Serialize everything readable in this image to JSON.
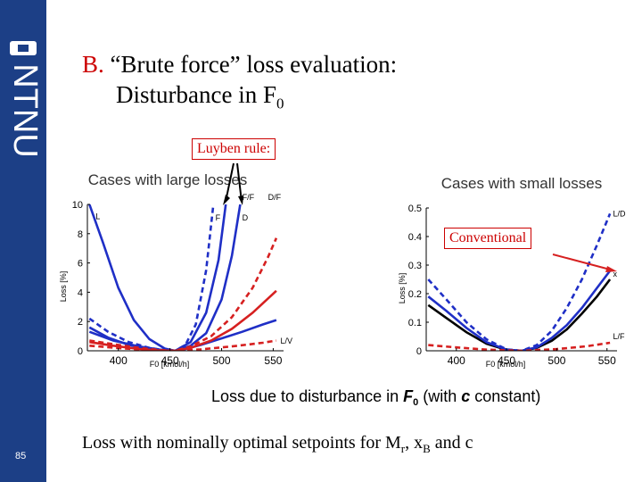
{
  "slide": {
    "prefix": "B.",
    "title_line1": "“Brute force” loss evaluation:",
    "title_line2": "Disturbance in F",
    "title_sub": "0",
    "page_number": "85",
    "footer_text": "Loss with nominally optimal setpoints for M",
    "footer_sub": "r",
    "footer_mid": ", x",
    "footer_sub2": "B",
    "footer_end": " and c",
    "luyben_label": "Luyben rule:",
    "conventional_label": "Conventional",
    "bottom_caption_pre": "Loss due to disturbance in ",
    "bottom_caption_sym": "F",
    "bottom_caption_sub": "0",
    "bottom_caption_post": " (with ",
    "bottom_caption_c": "c",
    "bottom_caption_end": " constant)",
    "brand": "NTNU"
  },
  "colors": {
    "blue": "#1f2fc6",
    "red": "#d62020",
    "black": "#000000",
    "sidebar": "#1c3f86",
    "accent": "#cc0000"
  },
  "chart_data": [
    {
      "type": "line",
      "title": "Cases with large losses",
      "xlabel": "F0 [kmol/h]",
      "ylabel": "Loss [%]",
      "xlim": [
        370,
        560
      ],
      "ylim": [
        0,
        10
      ],
      "xticks": [
        400,
        450,
        500,
        550
      ],
      "yticks": [
        0,
        2,
        4,
        6,
        8,
        10
      ],
      "series": [
        {
          "name": "L",
          "color": "#1f2fc6",
          "style": "solid",
          "x": [
            372,
            385,
            400,
            415,
            430,
            445,
            455,
            465,
            480,
            500,
            520,
            540,
            553
          ],
          "y": [
            10,
            7.4,
            4.3,
            2.1,
            0.8,
            0.15,
            0,
            0.12,
            0.4,
            0.85,
            1.3,
            1.8,
            2.1
          ]
        },
        {
          "name": "F/F0",
          "color": "#1f2fc6",
          "style": "dashed",
          "x": [
            372,
            390,
            410,
            430,
            445,
            455,
            465,
            475,
            485,
            492
          ],
          "y": [
            2.2,
            1.3,
            0.6,
            0.2,
            0.03,
            0,
            0.4,
            1.8,
            5.5,
            10
          ]
        },
        {
          "name": "F",
          "color": "#1f2fc6",
          "style": "solid",
          "x": [
            372,
            390,
            410,
            430,
            445,
            455,
            470,
            485,
            497,
            504
          ],
          "y": [
            1.6,
            0.9,
            0.4,
            0.1,
            0.02,
            0,
            0.6,
            2.6,
            6.2,
            10
          ]
        },
        {
          "name": "D",
          "color": "#1f2fc6",
          "style": "solid",
          "x": [
            372,
            395,
            420,
            440,
            455,
            470,
            485,
            500,
            510,
            518
          ],
          "y": [
            1.3,
            0.7,
            0.3,
            0.08,
            0,
            0.35,
            1.2,
            3.5,
            6.5,
            10
          ]
        },
        {
          "name": "D/F0",
          "color": "#d62020",
          "style": "dashed",
          "x": [
            372,
            395,
            420,
            440,
            455,
            470,
            490,
            510,
            530,
            545,
            553
          ],
          "y": [
            0.7,
            0.45,
            0.2,
            0.05,
            0,
            0.3,
            1.0,
            2.3,
            4.3,
            6.4,
            7.7
          ]
        },
        {
          "name": "L/V",
          "color": "#d62020",
          "style": "solid",
          "x": [
            372,
            395,
            420,
            440,
            455,
            470,
            490,
            510,
            530,
            553
          ],
          "y": [
            0.6,
            0.35,
            0.12,
            0.02,
            0,
            0.2,
            0.7,
            1.5,
            2.6,
            4.1
          ]
        },
        {
          "name": "",
          "color": "#d62020",
          "style": "dashed",
          "x": [
            372,
            400,
            430,
            455,
            480,
            510,
            540,
            553
          ],
          "y": [
            0.35,
            0.18,
            0.05,
            0,
            0.1,
            0.3,
            0.55,
            0.7
          ]
        }
      ],
      "labels": [
        {
          "text": "L",
          "x": 378,
          "y": 9.0
        },
        {
          "text": "F",
          "x": 494,
          "y": 8.9
        },
        {
          "text": "D",
          "x": 520,
          "y": 8.9
        },
        {
          "text": "F/F",
          "x": 520,
          "y": 10.3
        },
        {
          "text": "D/F",
          "x": 545,
          "y": 10.3
        },
        {
          "text": "L/V",
          "x": 557,
          "y": 0.5
        }
      ]
    },
    {
      "type": "line",
      "title": "Cases with small losses",
      "xlabel": "F0 [kmol/h]",
      "ylabel": "Loss [%]",
      "xlim": [
        370,
        560
      ],
      "ylim": [
        0,
        0.5
      ],
      "xticks": [
        400,
        450,
        500,
        550
      ],
      "yticks": [
        0,
        0.1,
        0.2,
        0.3,
        0.4,
        0.5
      ],
      "series": [
        {
          "name": "L/D",
          "color": "#1f2fc6",
          "style": "dashed",
          "x": [
            372,
            390,
            410,
            430,
            450,
            465,
            480,
            495,
            510,
            525,
            540,
            553
          ],
          "y": [
            0.25,
            0.18,
            0.1,
            0.04,
            0.005,
            0,
            0.02,
            0.07,
            0.15,
            0.25,
            0.37,
            0.48
          ]
        },
        {
          "name": "xD",
          "color": "#000000",
          "style": "solid",
          "x": [
            372,
            390,
            410,
            430,
            450,
            465,
            480,
            495,
            510,
            525,
            540,
            553
          ],
          "y": [
            0.16,
            0.115,
            0.065,
            0.025,
            0.003,
            0,
            0.01,
            0.035,
            0.075,
            0.13,
            0.19,
            0.25
          ]
        },
        {
          "name": "",
          "color": "#1f2fc6",
          "style": "solid",
          "x": [
            372,
            390,
            410,
            430,
            450,
            465,
            480,
            495,
            510,
            525,
            540,
            553
          ],
          "y": [
            0.19,
            0.14,
            0.08,
            0.03,
            0.004,
            0,
            0.012,
            0.045,
            0.09,
            0.15,
            0.22,
            0.28
          ]
        },
        {
          "name": "L/F",
          "color": "#d62020",
          "style": "dashed",
          "x": [
            372,
            400,
            430,
            465,
            500,
            530,
            553
          ],
          "y": [
            0.02,
            0.012,
            0.004,
            0,
            0.006,
            0.016,
            0.028
          ]
        }
      ],
      "labels": [
        {
          "text": "L/D",
          "x": 556,
          "y": 0.47
        },
        {
          "text": "x",
          "x": 556,
          "y": 0.26
        },
        {
          "text": "L/F",
          "x": 556,
          "y": 0.04
        }
      ]
    }
  ]
}
